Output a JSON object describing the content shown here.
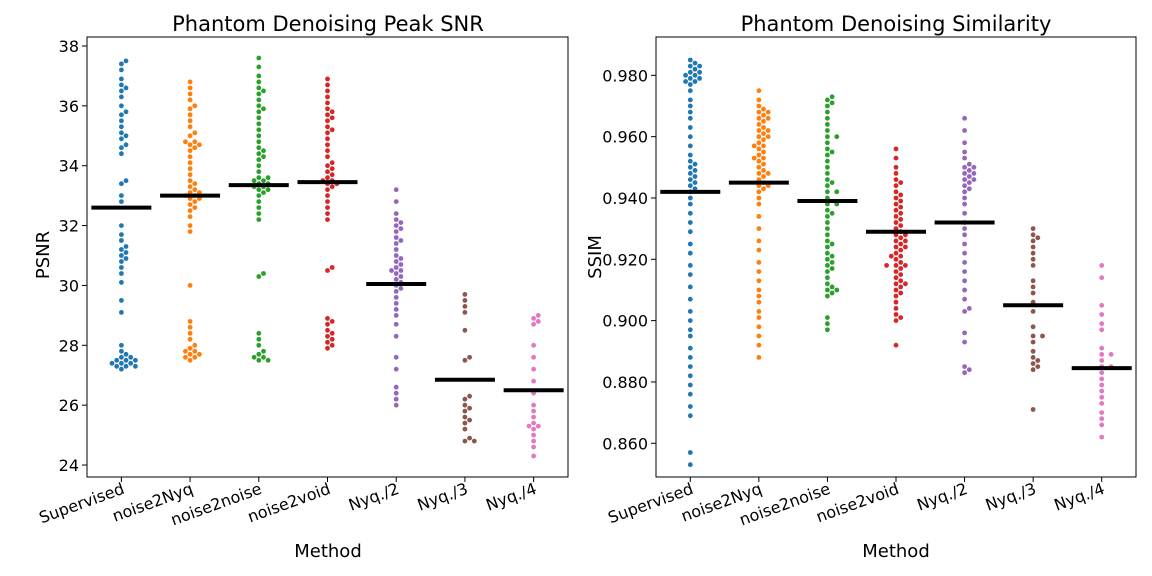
{
  "chart_data": [
    {
      "type": "scatter",
      "subtype": "swarm",
      "title": "Phantom Denoising Peak SNR",
      "xlabel": "Method",
      "ylabel": "PSNR",
      "categories": [
        "Supervised",
        "noise2Nyq",
        "noise2noise",
        "noise2void",
        "Nyq./2",
        "Nyq./3",
        "Nyq./4"
      ],
      "colors": [
        "#1f77b4",
        "#ff7f0e",
        "#2ca02c",
        "#d62728",
        "#9467bd",
        "#8c564b",
        "#e377c2"
      ],
      "ylim": [
        23.6,
        38.3
      ],
      "yticks": [
        24,
        26,
        28,
        30,
        32,
        34,
        36,
        38
      ],
      "means": [
        32.6,
        33.0,
        33.35,
        33.45,
        30.05,
        26.85,
        26.5
      ],
      "series": [
        {
          "values": [
            37.5,
            37.4,
            37.2,
            36.9,
            36.7,
            36.6,
            36.5,
            36.3,
            36.0,
            35.8,
            35.7,
            35.5,
            35.3,
            35.1,
            35.0,
            34.9,
            34.7,
            34.6,
            34.4,
            33.5,
            33.4,
            33.0,
            32.8,
            32.0,
            31.7,
            31.5,
            31.3,
            31.2,
            31.1,
            31.0,
            30.9,
            30.8,
            30.6,
            30.4,
            30.1,
            29.5,
            29.1,
            28.0,
            27.8,
            27.6,
            27.5,
            27.4,
            27.3,
            27.2,
            27.6,
            27.5,
            27.4,
            27.3,
            27.5,
            27.7,
            27.3,
            27.4
          ]
        },
        {
          "values": [
            36.8,
            36.6,
            36.4,
            36.2,
            36.0,
            35.9,
            35.7,
            35.5,
            35.3,
            35.1,
            35.0,
            34.8,
            34.7,
            34.6,
            34.5,
            34.3,
            34.1,
            33.9,
            33.7,
            33.5,
            33.4,
            33.3,
            33.2,
            33.1,
            33.0,
            32.9,
            32.8,
            32.7,
            32.6,
            32.5,
            32.3,
            32.0,
            31.8,
            30.0,
            28.8,
            28.6,
            28.4,
            28.2,
            28.0,
            27.9,
            27.8,
            27.7,
            27.6,
            27.5,
            27.6,
            27.7,
            27.8,
            33.0,
            32.9,
            33.1,
            34.8,
            34.7
          ]
        },
        {
          "values": [
            37.6,
            37.3,
            37.0,
            36.8,
            36.6,
            36.4,
            36.2,
            36.0,
            35.8,
            35.6,
            35.4,
            35.2,
            35.0,
            34.8,
            34.6,
            34.4,
            34.2,
            34.0,
            33.8,
            33.6,
            33.5,
            33.4,
            33.3,
            33.2,
            33.1,
            33.0,
            32.8,
            32.6,
            32.4,
            32.2,
            30.4,
            30.3,
            28.4,
            28.2,
            28.0,
            27.8,
            27.7,
            27.6,
            27.5,
            27.5,
            27.6,
            33.5,
            33.6,
            33.4,
            33.3,
            34.5,
            34.3,
            36.5,
            35.9,
            33.2
          ]
        },
        {
          "values": [
            36.9,
            36.7,
            36.5,
            36.3,
            36.1,
            35.9,
            35.7,
            35.5,
            35.3,
            35.1,
            34.9,
            34.7,
            34.5,
            34.3,
            34.1,
            33.9,
            33.7,
            33.5,
            33.4,
            33.3,
            33.2,
            33.0,
            32.8,
            32.6,
            32.4,
            32.2,
            30.6,
            30.5,
            28.9,
            28.8,
            28.7,
            28.5,
            28.4,
            28.3,
            28.2,
            28.1,
            28.0,
            27.9,
            33.6,
            33.5,
            33.4,
            35.6,
            35.2,
            34.0,
            33.8,
            35.8
          ]
        },
        {
          "values": [
            33.2,
            32.8,
            32.4,
            32.2,
            32.0,
            31.9,
            31.8,
            31.6,
            31.4,
            31.2,
            31.0,
            30.8,
            30.7,
            30.6,
            30.5,
            30.4,
            30.3,
            30.2,
            30.1,
            30.0,
            29.9,
            29.8,
            29.6,
            29.4,
            29.2,
            29.0,
            28.7,
            28.3,
            27.6,
            27.2,
            26.6,
            26.4,
            26.2,
            26.0,
            30.5,
            30.9,
            31.5,
            32.1
          ]
        },
        {
          "values": [
            29.7,
            29.5,
            29.3,
            29.1,
            28.5,
            27.6,
            27.5,
            26.2,
            26.0,
            25.8,
            25.6,
            25.4,
            25.2,
            24.9,
            24.8,
            24.8,
            26.3,
            25.9,
            25.5
          ]
        },
        {
          "values": [
            29.0,
            28.9,
            28.8,
            28.7,
            28.0,
            27.6,
            27.2,
            26.8,
            26.4,
            26.0,
            25.8,
            25.6,
            25.4,
            25.3,
            25.2,
            25.0,
            24.8,
            24.6,
            24.3,
            25.3
          ]
        }
      ]
    },
    {
      "type": "scatter",
      "subtype": "swarm",
      "title": "Phantom Denoising Similarity",
      "xlabel": "Method",
      "ylabel": "SSIM",
      "categories": [
        "Supervised",
        "noise2Nyq",
        "noise2noise",
        "noise2void",
        "Nyq./2",
        "Nyq./3",
        "Nyq./4"
      ],
      "colors": [
        "#1f77b4",
        "#ff7f0e",
        "#2ca02c",
        "#d62728",
        "#9467bd",
        "#8c564b",
        "#e377c2"
      ],
      "ylim": [
        0.849,
        0.9925
      ],
      "yticks": [
        0.86,
        0.88,
        0.9,
        0.92,
        0.94,
        0.96,
        0.98
      ],
      "ytick_format": "3",
      "means": [
        0.942,
        0.945,
        0.939,
        0.929,
        0.932,
        0.905,
        0.8845
      ],
      "series": [
        {
          "values": [
            0.985,
            0.984,
            0.983,
            0.982,
            0.981,
            0.98,
            0.979,
            0.978,
            0.977,
            0.975,
            0.972,
            0.97,
            0.968,
            0.966,
            0.963,
            0.96,
            0.957,
            0.954,
            0.952,
            0.95,
            0.948,
            0.946,
            0.944,
            0.942,
            0.94,
            0.938,
            0.935,
            0.932,
            0.929,
            0.925,
            0.922,
            0.918,
            0.915,
            0.911,
            0.907,
            0.903,
            0.9,
            0.897,
            0.895,
            0.891,
            0.888,
            0.885,
            0.882,
            0.879,
            0.876,
            0.872,
            0.869,
            0.857,
            0.853,
            0.98,
            0.981,
            0.979,
            0.978,
            0.983,
            0.947,
            0.945,
            0.949,
            0.951,
            0.943
          ]
        },
        {
          "values": [
            0.975,
            0.972,
            0.97,
            0.969,
            0.968,
            0.967,
            0.966,
            0.965,
            0.964,
            0.963,
            0.962,
            0.961,
            0.96,
            0.959,
            0.958,
            0.957,
            0.956,
            0.955,
            0.954,
            0.953,
            0.952,
            0.951,
            0.95,
            0.949,
            0.948,
            0.947,
            0.946,
            0.945,
            0.944,
            0.943,
            0.942,
            0.94,
            0.938,
            0.934,
            0.93,
            0.926,
            0.923,
            0.919,
            0.916,
            0.913,
            0.91,
            0.908,
            0.906,
            0.903,
            0.901,
            0.898,
            0.895,
            0.892,
            0.888,
            0.966,
            0.962,
            0.957,
            0.953,
            0.948,
            0.944,
            0.968,
            0.96
          ]
        },
        {
          "values": [
            0.973,
            0.972,
            0.971,
            0.97,
            0.968,
            0.966,
            0.964,
            0.962,
            0.96,
            0.958,
            0.956,
            0.954,
            0.952,
            0.95,
            0.948,
            0.946,
            0.944,
            0.942,
            0.94,
            0.938,
            0.936,
            0.934,
            0.932,
            0.93,
            0.928,
            0.926,
            0.924,
            0.922,
            0.92,
            0.918,
            0.917,
            0.916,
            0.914,
            0.912,
            0.911,
            0.91,
            0.909,
            0.908,
            0.901,
            0.899,
            0.897,
            0.96,
            0.955,
            0.945,
            0.935,
            0.925,
            0.919,
            0.921,
            0.91,
            0.942,
            0.938
          ]
        },
        {
          "values": [
            0.956,
            0.953,
            0.95,
            0.948,
            0.946,
            0.944,
            0.942,
            0.94,
            0.938,
            0.936,
            0.934,
            0.932,
            0.93,
            0.929,
            0.928,
            0.927,
            0.926,
            0.925,
            0.924,
            0.923,
            0.922,
            0.921,
            0.92,
            0.919,
            0.918,
            0.917,
            0.916,
            0.915,
            0.914,
            0.913,
            0.912,
            0.911,
            0.91,
            0.909,
            0.908,
            0.906,
            0.904,
            0.902,
            0.901,
            0.9,
            0.892,
            0.945,
            0.939,
            0.935,
            0.931,
            0.926,
            0.921,
            0.918,
            0.912,
            0.941,
            0.937,
            0.933,
            0.928,
            0.924,
            0.918
          ]
        },
        {
          "values": [
            0.966,
            0.962,
            0.958,
            0.955,
            0.953,
            0.951,
            0.95,
            0.949,
            0.948,
            0.947,
            0.946,
            0.945,
            0.944,
            0.943,
            0.942,
            0.94,
            0.938,
            0.935,
            0.932,
            0.93,
            0.928,
            0.925,
            0.922,
            0.919,
            0.916,
            0.913,
            0.91,
            0.907,
            0.904,
            0.903,
            0.896,
            0.893,
            0.885,
            0.884,
            0.883,
            0.948,
            0.95,
            0.946
          ]
        },
        {
          "values": [
            0.93,
            0.928,
            0.926,
            0.924,
            0.922,
            0.92,
            0.918,
            0.913,
            0.911,
            0.909,
            0.906,
            0.903,
            0.898,
            0.895,
            0.893,
            0.89,
            0.888,
            0.887,
            0.886,
            0.885,
            0.884,
            0.871,
            0.927,
            0.895
          ]
        },
        {
          "values": [
            0.918,
            0.914,
            0.905,
            0.902,
            0.899,
            0.897,
            0.891,
            0.889,
            0.887,
            0.885,
            0.883,
            0.881,
            0.879,
            0.877,
            0.875,
            0.873,
            0.87,
            0.868,
            0.866,
            0.862,
            0.889,
            0.885
          ]
        }
      ]
    }
  ]
}
